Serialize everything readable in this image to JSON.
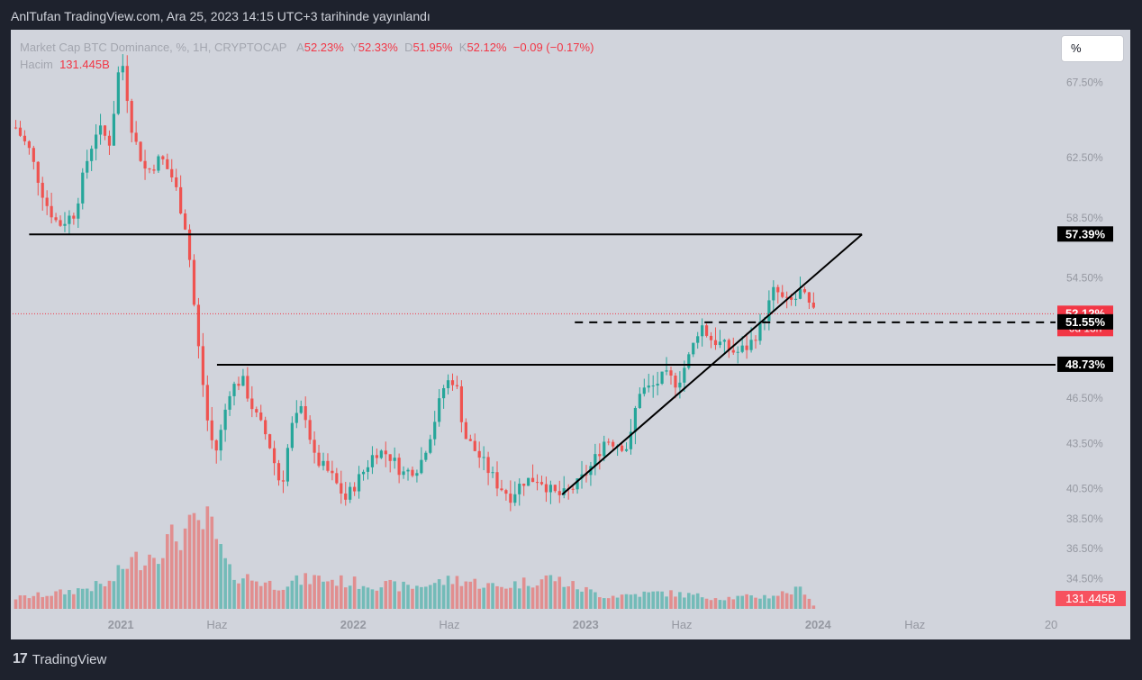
{
  "caption": "AnlTufan TradingView.com, Ara 25, 2023 14:15 UTC+3 tarihinde yayınlandı",
  "legend": {
    "symbol": "Market Cap BTC Dominance, %, 1H, CRYPTOCAP",
    "o_label": "A",
    "o_value": "52.23%",
    "h_label": "Y",
    "h_value": "52.33%",
    "l_label": "D",
    "l_value": "51.95%",
    "c_label": "K",
    "c_value": "52.12%",
    "change": "−0.09 (−0.17%)",
    "volume_label": "Hacim",
    "volume_value": "131.445B"
  },
  "scale_button": "%",
  "footer": {
    "logo": "17",
    "brand": "TradingView"
  },
  "colors": {
    "up": "#26a69a",
    "down": "#ef5350",
    "panel": "#d1d4dc",
    "frame": "#1e222d"
  },
  "chart_data": {
    "type": "candlestick",
    "y_unit": "%",
    "ylim": [
      32.5,
      71.0
    ],
    "y_ticks": [
      {
        "value": 67.5,
        "label": "67.50%"
      },
      {
        "value": 62.5,
        "label": "62.50%"
      },
      {
        "value": 58.5,
        "label": "58.50%"
      },
      {
        "value": 54.5,
        "label": "54.50%"
      },
      {
        "value": 46.5,
        "label": "46.50%"
      },
      {
        "value": 43.5,
        "label": "43.50%"
      },
      {
        "value": 40.5,
        "label": "40.50%"
      },
      {
        "value": 38.5,
        "label": "38.50%"
      },
      {
        "value": 36.5,
        "label": "36.50%"
      },
      {
        "value": 34.5,
        "label": "34.50%"
      }
    ],
    "x_ticks": [
      {
        "date": "2021-01-01",
        "label": "2021",
        "major": true
      },
      {
        "date": "2021-06-01",
        "label": "Haz",
        "major": false
      },
      {
        "date": "2022-01-01",
        "label": "2022",
        "major": true
      },
      {
        "date": "2022-06-01",
        "label": "Haz",
        "major": false
      },
      {
        "date": "2023-01-01",
        "label": "2023",
        "major": true
      },
      {
        "date": "2023-06-01",
        "label": "Haz",
        "major": false
      },
      {
        "date": "2024-01-01",
        "label": "2024",
        "major": true
      },
      {
        "date": "2024-06-01",
        "label": "Haz",
        "major": false
      },
      {
        "date": "2025-01-01",
        "label": "20",
        "major": false
      }
    ],
    "xlim": [
      "2020-07-15",
      "2025-01-08"
    ],
    "dominance_path": [
      [
        "2020-07-20",
        64.5
      ],
      [
        "2020-08-10",
        63.0
      ],
      [
        "2020-09-05",
        59.5
      ],
      [
        "2020-09-25",
        58.0
      ],
      [
        "2020-10-20",
        58.8
      ],
      [
        "2020-11-10",
        62.5
      ],
      [
        "2020-11-25",
        64.5
      ],
      [
        "2020-12-15",
        63.5
      ],
      [
        "2021-01-01",
        69.5
      ],
      [
        "2021-01-20",
        64.0
      ],
      [
        "2021-02-10",
        61.5
      ],
      [
        "2021-03-05",
        62.5
      ],
      [
        "2021-03-25",
        61.0
      ],
      [
        "2021-04-15",
        57.5
      ],
      [
        "2021-05-01",
        50.5
      ],
      [
        "2021-05-20",
        44.0
      ],
      [
        "2021-06-01",
        43.0
      ],
      [
        "2021-06-20",
        47.0
      ],
      [
        "2021-07-10",
        47.8
      ],
      [
        "2021-07-30",
        45.5
      ],
      [
        "2021-08-20",
        43.8
      ],
      [
        "2021-09-10",
        40.5
      ],
      [
        "2021-09-25",
        44.5
      ],
      [
        "2021-10-15",
        46.0
      ],
      [
        "2021-11-01",
        42.5
      ],
      [
        "2021-11-25",
        41.5
      ],
      [
        "2021-12-20",
        39.8
      ],
      [
        "2022-01-15",
        41.5
      ],
      [
        "2022-02-05",
        43.0
      ],
      [
        "2022-02-25",
        42.8
      ],
      [
        "2022-03-20",
        41.5
      ],
      [
        "2022-04-15",
        42.0
      ],
      [
        "2022-05-05",
        44.5
      ],
      [
        "2022-05-25",
        47.5
      ],
      [
        "2022-06-10",
        47.8
      ],
      [
        "2022-06-25",
        44.0
      ],
      [
        "2022-07-20",
        42.5
      ],
      [
        "2022-08-15",
        40.8
      ],
      [
        "2022-09-05",
        40.0
      ],
      [
        "2022-09-25",
        41.0
      ],
      [
        "2022-10-20",
        41.2
      ],
      [
        "2022-11-10",
        40.2
      ],
      [
        "2022-11-25",
        40.0
      ],
      [
        "2022-12-20",
        40.8
      ],
      [
        "2023-01-10",
        42.0
      ],
      [
        "2023-02-01",
        43.8
      ],
      [
        "2023-02-20",
        43.5
      ],
      [
        "2023-03-10",
        43.2
      ],
      [
        "2023-03-25",
        47.0
      ],
      [
        "2023-04-15",
        47.2
      ],
      [
        "2023-05-05",
        48.0
      ],
      [
        "2023-05-25",
        47.5
      ],
      [
        "2023-06-15",
        49.5
      ],
      [
        "2023-06-30",
        51.5
      ],
      [
        "2023-07-15",
        50.5
      ],
      [
        "2023-08-05",
        50.0
      ],
      [
        "2023-08-25",
        49.5
      ],
      [
        "2023-09-15",
        50.0
      ],
      [
        "2023-10-05",
        51.5
      ],
      [
        "2023-10-25",
        53.8
      ],
      [
        "2023-11-10",
        52.8
      ],
      [
        "2023-11-25",
        53.0
      ],
      [
        "2023-12-05",
        53.6
      ],
      [
        "2023-12-15",
        52.8
      ],
      [
        "2023-12-25",
        52.12
      ]
    ],
    "volume_path": [
      [
        "2020-07-20",
        12
      ],
      [
        "2020-10-01",
        18
      ],
      [
        "2020-12-15",
        28
      ],
      [
        "2021-01-10",
        50
      ],
      [
        "2021-02-20",
        62
      ],
      [
        "2021-04-01",
        82
      ],
      [
        "2021-05-20",
        95
      ],
      [
        "2021-06-20",
        40
      ],
      [
        "2021-09-01",
        26
      ],
      [
        "2021-11-01",
        34
      ],
      [
        "2022-01-15",
        28
      ],
      [
        "2022-04-01",
        24
      ],
      [
        "2022-06-15",
        33
      ],
      [
        "2022-08-15",
        24
      ],
      [
        "2022-11-10",
        35
      ],
      [
        "2022-12-01",
        28
      ],
      [
        "2023-02-01",
        14
      ],
      [
        "2023-05-01",
        18
      ],
      [
        "2023-08-01",
        12
      ],
      [
        "2023-10-15",
        14
      ],
      [
        "2023-12-10",
        22
      ],
      [
        "2023-12-25",
        4
      ]
    ],
    "lines": [
      {
        "kind": "horizontal",
        "style": "solid",
        "y": 57.39,
        "x1": "2020-08-10",
        "x2": "2024-03-10"
      },
      {
        "kind": "horizontal",
        "style": "solid",
        "y": 48.73,
        "x1": "2021-06-01",
        "x2": "2025-01-08"
      },
      {
        "kind": "horizontal",
        "style": "dashed",
        "y": 51.55,
        "x1": "2022-12-15",
        "x2": "2025-01-08"
      },
      {
        "kind": "trend",
        "style": "solid",
        "p1": [
          "2022-11-25",
          40.1
        ],
        "p2": [
          "2024-03-10",
          57.39
        ]
      }
    ],
    "last_price_line": 52.12,
    "price_labels": [
      {
        "value": 57.39,
        "text": "57.39%",
        "style": "dark"
      },
      {
        "value": 52.12,
        "text": "52.12%",
        "sub": "6d 13h",
        "style": "red"
      },
      {
        "value": 51.55,
        "text": "51.55%",
        "style": "dark"
      },
      {
        "value": 48.73,
        "text": "48.73%",
        "style": "dark"
      }
    ],
    "volume_badge": "131.445B"
  }
}
